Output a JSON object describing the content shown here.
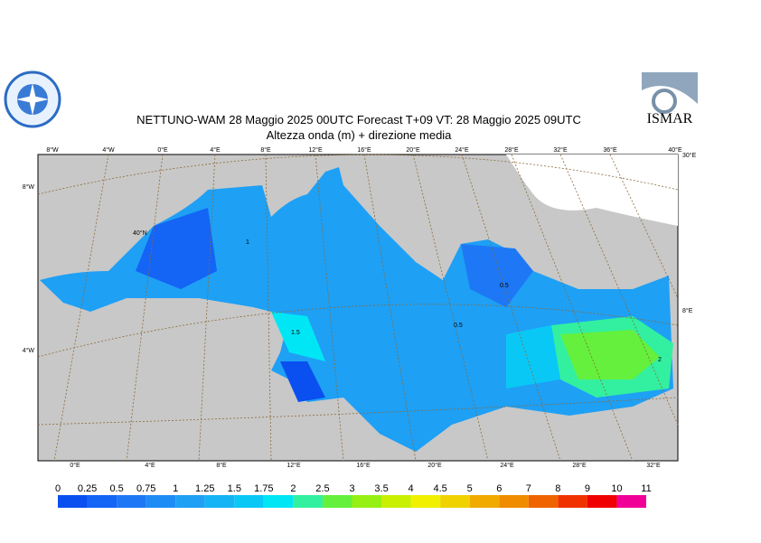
{
  "header": {
    "title": "NETTUNO-WAM  28   Maggio  2025 00UTC Forecast T+09 VT: 28   Maggio  2025 09UTC",
    "subtitle": "Altezza onda (m) + direzione media",
    "logo_right": "ISMAR"
  },
  "map": {
    "top_labels": [
      "8°W",
      "4°W",
      "0°E",
      "4°E",
      "8°E",
      "12°E",
      "16°E",
      "20°E",
      "24°E",
      "28°E",
      "32°E",
      "36°E",
      "40°E"
    ],
    "bottom_labels": [
      "0°E",
      "4°E",
      "8°E",
      "12°E",
      "16°E",
      "20°E",
      "24°E",
      "28°E",
      "32°E"
    ],
    "left_labels": [
      "8°W",
      "4°W"
    ],
    "right_labels": [
      "30°E",
      "8°E"
    ],
    "lat_label": "40°N",
    "contour_labels": [
      "1",
      "1.5",
      "0.5",
      "0.5",
      "2"
    ]
  },
  "colorbar": {
    "labels": [
      "0",
      "0.25",
      "0.5",
      "0.75",
      "1",
      "1.25",
      "1.5",
      "1.75",
      "2",
      "2.5",
      "3",
      "3.5",
      "4",
      "4.5",
      "5",
      "6",
      "7",
      "8",
      "9",
      "10",
      "11"
    ],
    "colors": [
      "#0a4ff0",
      "#1464f5",
      "#1e78f5",
      "#1e8cf5",
      "#1ea0f5",
      "#14b4f5",
      "#0ac8f5",
      "#00e6f5",
      "#32f0a0",
      "#64f03c",
      "#96f014",
      "#c8f000",
      "#f0f000",
      "#f0d200",
      "#f0aa00",
      "#f08c00",
      "#f06400",
      "#f03200",
      "#f00000",
      "#f00096"
    ]
  }
}
